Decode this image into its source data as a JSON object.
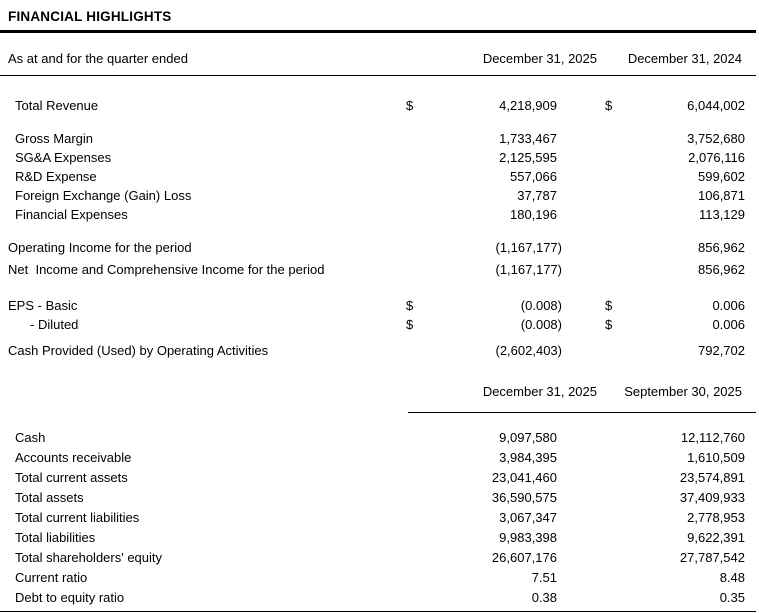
{
  "title": "FINANCIAL HIGHLIGHTS",
  "colors": {
    "text": "#000000",
    "background": "#ffffff",
    "rule": "#000000"
  },
  "section1": {
    "header": {
      "label": "As at and for the quarter ended",
      "col1": "December 31, 2025",
      "col2": "December 31, 2024"
    },
    "groups": [
      [
        {
          "label": "Total Revenue",
          "indent": 1,
          "d1": "$",
          "v1": "4,218,909",
          "d2": "$",
          "v2": "6,044,002"
        }
      ],
      [
        {
          "label": "Gross Margin",
          "indent": 1,
          "v1": "1,733,467",
          "v2": "3,752,680"
        },
        {
          "label": "SG&A Expenses",
          "indent": 1,
          "v1": "2,125,595",
          "v2": "2,076,116"
        },
        {
          "label": "R&D Expense",
          "indent": 1,
          "v1": "557,066",
          "v2": "599,602"
        },
        {
          "label": "Foreign Exchange (Gain) Loss",
          "indent": 1,
          "v1": "37,787",
          "v2": "106,871"
        },
        {
          "label": "Financial Expenses",
          "indent": 1,
          "v1": "180,196",
          "v2": "113,129"
        }
      ],
      [
        {
          "label": "Operating Income for the period",
          "indent": 0,
          "v1": "(1,167,177)",
          "v2": "856,962"
        }
      ],
      [
        {
          "label": "Net  Income and Comprehensive Income for the period",
          "indent": 0,
          "v1": "(1,167,177)",
          "v2": "856,962"
        }
      ],
      [
        {
          "label": "EPS - Basic",
          "indent": 0,
          "d1": "$",
          "v1": "(0.008)",
          "d2": "$",
          "v2": "0.006"
        },
        {
          "label": "- Diluted",
          "indent": 2,
          "d1": "$",
          "v1": "(0.008)",
          "d2": "$",
          "v2": "0.006"
        }
      ],
      [
        {
          "label": "Cash Provided (Used) by Operating Activities",
          "indent": 0,
          "v1": "(2,602,403)",
          "v2": "792,702"
        }
      ]
    ]
  },
  "section2": {
    "header": {
      "label": "",
      "col1": "December 31, 2025",
      "col2": "September 30, 2025"
    },
    "groups": [
      [
        {
          "label": "Cash",
          "indent": 1,
          "v1": "9,097,580",
          "v2": "12,112,760"
        },
        {
          "label": "Accounts receivable",
          "indent": 1,
          "v1": "3,984,395",
          "v2": "1,610,509"
        },
        {
          "label": "Total current assets",
          "indent": 1,
          "v1": "23,041,460",
          "v2": "23,574,891"
        },
        {
          "label": "Total assets",
          "indent": 1,
          "v1": "36,590,575",
          "v2": "37,409,933"
        },
        {
          "label": "Total current liabilities",
          "indent": 1,
          "v1": "3,067,347",
          "v2": "2,778,953"
        },
        {
          "label": "Total liabilities",
          "indent": 1,
          "v1": "9,983,398",
          "v2": "9,622,391"
        },
        {
          "label": "Total shareholders' equity",
          "indent": 1,
          "v1": "26,607,176",
          "v2": "27,787,542"
        },
        {
          "label": "Current ratio",
          "indent": 1,
          "v1": "7.51",
          "v2": "8.48"
        },
        {
          "label": "Debt to equity ratio",
          "indent": 1,
          "v1": "0.38",
          "v2": "0.35"
        }
      ]
    ]
  }
}
